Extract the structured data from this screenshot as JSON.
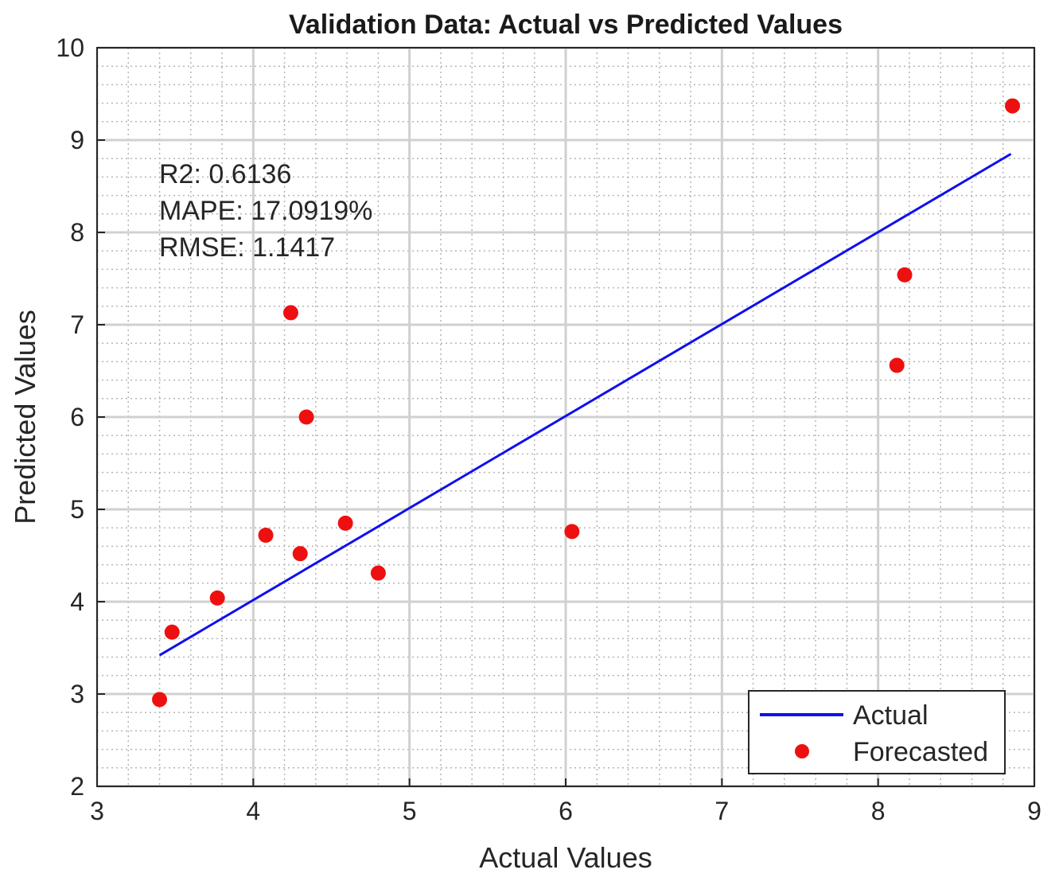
{
  "chart_data": {
    "type": "scatter",
    "title": "Validation Data: Actual vs Predicted Values",
    "xlabel": "Actual Values",
    "ylabel": "Predicted Values",
    "xlim": [
      3,
      9
    ],
    "ylim": [
      2,
      10
    ],
    "xticks": [
      3,
      4,
      5,
      6,
      7,
      8,
      9
    ],
    "yticks": [
      2,
      3,
      4,
      5,
      6,
      7,
      8,
      9,
      10
    ],
    "grid": true,
    "minor_grid": true,
    "stats": [
      "R2: 0.6136",
      "MAPE: 17.0919%",
      "RMSE: 1.1417"
    ],
    "series": [
      {
        "name": "Actual",
        "kind": "line",
        "color": "#1010ee",
        "x": [
          3.4,
          8.85
        ],
        "y": [
          3.42,
          8.85
        ]
      },
      {
        "name": "Forecasted",
        "kind": "scatter",
        "color": "#ee1010",
        "x": [
          3.4,
          3.48,
          3.77,
          4.08,
          4.24,
          4.3,
          4.34,
          4.59,
          4.8,
          6.04,
          8.12,
          8.17,
          8.86
        ],
        "y": [
          2.94,
          3.67,
          4.04,
          4.72,
          7.13,
          4.52,
          6.0,
          4.85,
          4.31,
          4.76,
          6.56,
          7.54,
          9.37
        ]
      }
    ],
    "legend": {
      "position": "bottom-right",
      "entries": [
        "Actual",
        "Forecasted"
      ]
    }
  }
}
